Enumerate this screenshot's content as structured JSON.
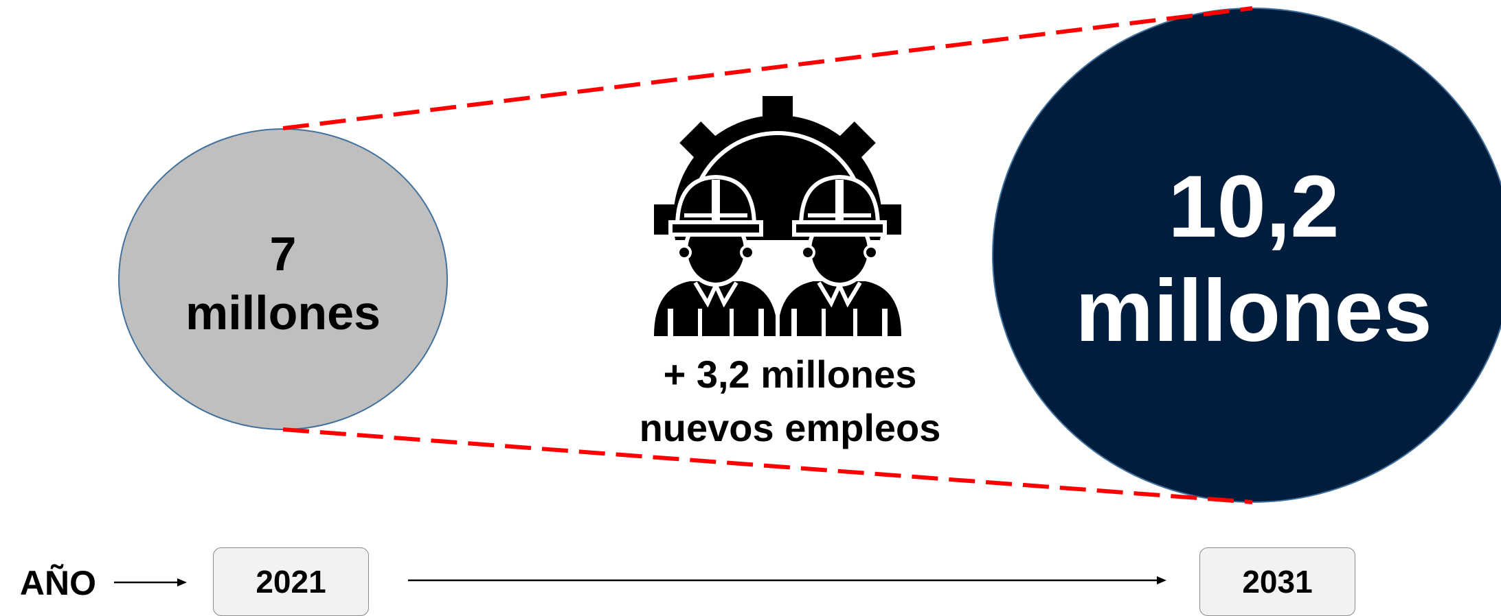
{
  "start": {
    "number": "7",
    "unit": "millones",
    "color": "#bfbfbf"
  },
  "end": {
    "number": "10,2",
    "unit": "millones",
    "color": "#001d3d"
  },
  "gain": {
    "line1": "+ 3,2 millones",
    "line2": "nuevos empleos"
  },
  "icon": "workers-with-gear-icon",
  "connector_color": "#ff0000",
  "timeline": {
    "label": "AÑO",
    "start_year": "2021",
    "end_year": "2031"
  }
}
